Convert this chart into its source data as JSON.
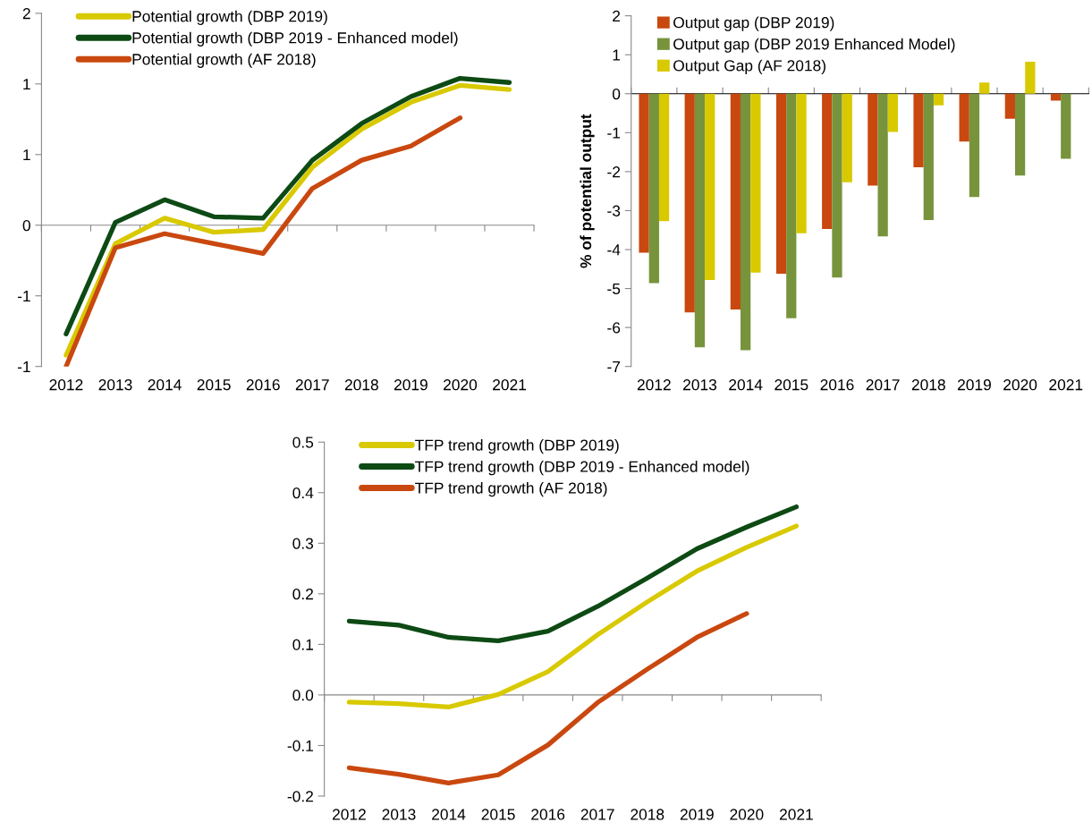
{
  "chart_data": [
    {
      "type": "line",
      "categories": [
        "2012",
        "2013",
        "2014",
        "2015",
        "2016",
        "2017",
        "2018",
        "2019",
        "2020",
        "2021"
      ],
      "series": [
        {
          "name": "Potential growth (DBP 2019)",
          "color": "#d8c900",
          "values": [
            -0.92,
            -0.13,
            0.05,
            -0.05,
            -0.03,
            0.41,
            0.68,
            0.87,
            0.99,
            0.96
          ]
        },
        {
          "name": "Potential growth (DBP 2019 - Enhanced model)",
          "color": "#0d4a14",
          "values": [
            -0.77,
            0.02,
            0.18,
            0.06,
            0.05,
            0.46,
            0.72,
            0.91,
            1.04,
            1.01
          ]
        },
        {
          "name": "Potential growth (AF 2018)",
          "color": "#c9480f",
          "values": [
            -1.0,
            -0.16,
            -0.06,
            -0.13,
            -0.2,
            0.26,
            0.46,
            0.56,
            0.76,
            null
          ]
        }
      ],
      "ylim": [
        -1.0,
        1.5
      ],
      "yticks": [
        {
          "value": -1.0,
          "label": "-1"
        },
        {
          "value": -0.5,
          "label": "-1"
        },
        {
          "value": 0,
          "label": "0"
        },
        {
          "value": 0.5,
          "label": "1"
        },
        {
          "value": 1.0,
          "label": "1"
        },
        {
          "value": 1.5,
          "label": "2"
        }
      ],
      "legend": "top left",
      "marker": "none",
      "line_style": "solid"
    },
    {
      "type": "bar",
      "categories": [
        "2012",
        "2013",
        "2014",
        "2015",
        "2016",
        "2017",
        "2018",
        "2019",
        "2020",
        "2021"
      ],
      "ylabel": "% of potential output",
      "series": [
        {
          "name": "Output gap (DBP 2019)",
          "color": "#c9480f",
          "values": [
            -4.08,
            -5.61,
            -5.54,
            -4.62,
            -3.47,
            -2.36,
            -1.89,
            -1.23,
            -0.64,
            -0.18
          ]
        },
        {
          "name": "Output gap (DBP 2019 Enhanced Model)",
          "color": "#77933c",
          "values": [
            -4.86,
            -6.51,
            -6.58,
            -5.76,
            -4.72,
            -3.66,
            -3.24,
            -2.65,
            -2.1,
            -1.67
          ]
        },
        {
          "name": "Output Gap (AF 2018)",
          "color": "#d8c900",
          "values": [
            -3.27,
            -4.78,
            -4.59,
            -3.58,
            -2.27,
            -0.98,
            -0.3,
            0.29,
            0.82,
            null
          ]
        }
      ],
      "ylim": [
        -7,
        2
      ],
      "yticks": [
        -7,
        -6,
        -5,
        -4,
        -3,
        -2,
        -1,
        0,
        1,
        2
      ],
      "legend": "top left"
    },
    {
      "type": "line",
      "categories": [
        "2012",
        "2013",
        "2014",
        "2015",
        "2016",
        "2017",
        "2018",
        "2019",
        "2020",
        "2021"
      ],
      "series": [
        {
          "name": "TFP trend growth (DBP 2019)",
          "color": "#d8c900",
          "values": [
            -0.014,
            -0.017,
            -0.024,
            0.001,
            0.046,
            0.119,
            0.184,
            0.245,
            0.292,
            0.334
          ]
        },
        {
          "name": "TFP trend growth (DBP 2019 - Enhanced model)",
          "color": "#0d4a14",
          "values": [
            0.146,
            0.138,
            0.114,
            0.107,
            0.126,
            0.175,
            0.231,
            0.289,
            0.332,
            0.372
          ]
        },
        {
          "name": "TFP trend growth (AF 2018)",
          "color": "#c9480f",
          "values": [
            -0.144,
            -0.157,
            -0.174,
            -0.158,
            -0.099,
            -0.015,
            0.051,
            0.114,
            0.161,
            null
          ]
        }
      ],
      "ylim": [
        -0.2,
        0.5
      ],
      "yticks": [
        -0.2,
        -0.1,
        {
          "value": 0,
          "label": "0.0"
        },
        0.1,
        0.2,
        0.3,
        0.4,
        0.5
      ],
      "legend": "top left",
      "marker": "none",
      "line_style": "solid"
    }
  ]
}
